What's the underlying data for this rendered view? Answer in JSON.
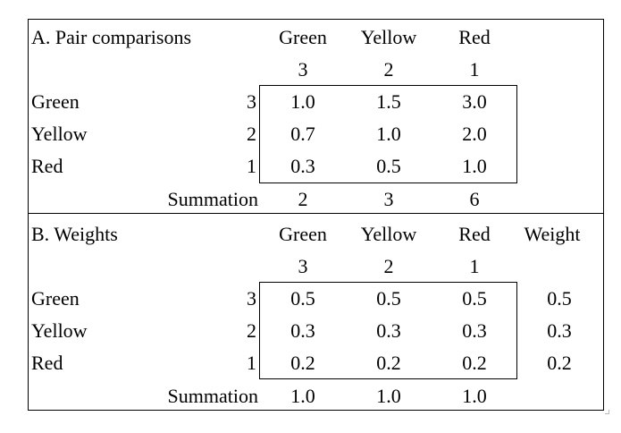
{
  "section_a": {
    "title": "A. Pair comparisons",
    "columns": [
      "Green",
      "Yellow",
      "Red"
    ],
    "ranks": [
      "3",
      "2",
      "1"
    ],
    "rows": [
      {
        "label": "Green",
        "rank": "3",
        "values": [
          "1.0",
          "1.5",
          "3.0"
        ]
      },
      {
        "label": "Yellow",
        "rank": "2",
        "values": [
          "0.7",
          "1.0",
          "2.0"
        ]
      },
      {
        "label": "Red",
        "rank": "1",
        "values": [
          "0.3",
          "0.5",
          "1.0"
        ]
      }
    ],
    "summation_label": "Summation",
    "summation": [
      "2",
      "3",
      "6"
    ]
  },
  "section_b": {
    "title": "B. Weights",
    "columns": [
      "Green",
      "Yellow",
      "Red"
    ],
    "weight_header": "Weight",
    "ranks": [
      "3",
      "2",
      "1"
    ],
    "rows": [
      {
        "label": "Green",
        "rank": "3",
        "values": [
          "0.5",
          "0.5",
          "0.5"
        ],
        "weight": "0.5"
      },
      {
        "label": "Yellow",
        "rank": "2",
        "values": [
          "0.3",
          "0.3",
          "0.3"
        ],
        "weight": "0.3"
      },
      {
        "label": "Red",
        "rank": "1",
        "values": [
          "0.2",
          "0.2",
          "0.2"
        ],
        "weight": "0.2"
      }
    ],
    "summation_label": "Summation",
    "summation": [
      "1.0",
      "1.0",
      "1.0"
    ]
  }
}
